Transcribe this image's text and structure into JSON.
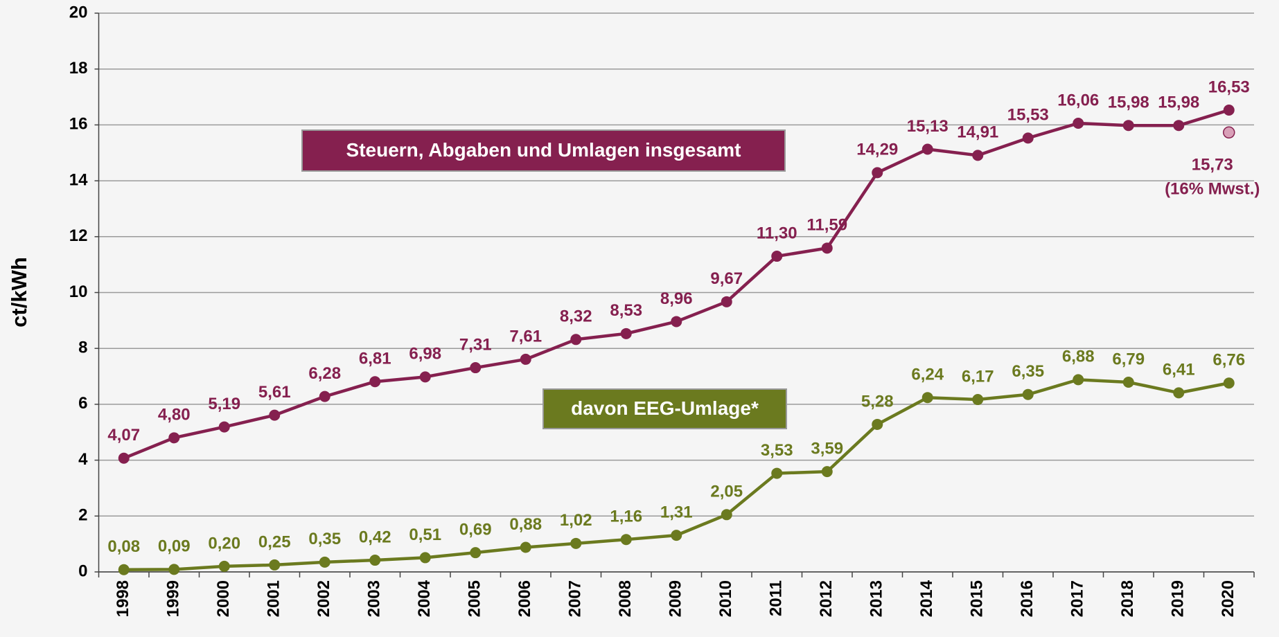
{
  "chart_data": {
    "type": "line",
    "y_label": "ct/kWh",
    "categories": [
      "1998",
      "1999",
      "2000",
      "2001",
      "2002",
      "2003",
      "2004",
      "2005",
      "2006",
      "2007",
      "2008",
      "2009",
      "2010",
      "2011",
      "2012",
      "2013",
      "2014",
      "2015",
      "2016",
      "2017",
      "2018",
      "2019",
      "2020"
    ],
    "series": [
      {
        "name": "Steuern, Abgaben und Umlagen insgesamt",
        "color": "#85204f",
        "values": [
          4.07,
          4.8,
          5.19,
          5.61,
          6.28,
          6.81,
          6.98,
          7.31,
          7.61,
          8.32,
          8.53,
          8.96,
          9.67,
          11.3,
          11.59,
          14.29,
          15.13,
          14.91,
          15.53,
          16.06,
          15.98,
          15.98,
          16.53
        ],
        "value_labels": [
          "4,07",
          "4,80",
          "5,19",
          "5,61",
          "6,28",
          "6,81",
          "6,98",
          "7,31",
          "7,61",
          "8,32",
          "8,53",
          "8,96",
          "9,67",
          "11,30",
          "11,59",
          "14,29",
          "15,13",
          "14,91",
          "15,53",
          "16,06",
          "15,98",
          "15,98",
          "16,53"
        ]
      },
      {
        "name": "davon EEG-Umlage*",
        "color": "#6b7a1f",
        "values": [
          0.08,
          0.09,
          0.2,
          0.25,
          0.35,
          0.42,
          0.51,
          0.69,
          0.88,
          1.02,
          1.16,
          1.31,
          2.05,
          3.53,
          3.59,
          5.28,
          6.24,
          6.17,
          6.35,
          6.88,
          6.79,
          6.41,
          6.76
        ],
        "value_labels": [
          "0,08",
          "0,09",
          "0,20",
          "0,25",
          "0,35",
          "0,42",
          "0,51",
          "0,69",
          "0,88",
          "1,02",
          "1,16",
          "1,31",
          "2,05",
          "3,53",
          "3,59",
          "5,28",
          "6,24",
          "6,17",
          "6,35",
          "6,88",
          "6,79",
          "6,41",
          "6,76"
        ]
      }
    ],
    "annotations": [
      {
        "x": "2020",
        "value": 15.73,
        "value_label": "15,73",
        "text": "(16% Mwst.)",
        "color": "#d9a0b8"
      }
    ],
    "ylim": [
      0,
      20
    ],
    "yticks": [
      0,
      2,
      4,
      6,
      8,
      10,
      12,
      14,
      16,
      18,
      20
    ],
    "grid": true
  }
}
